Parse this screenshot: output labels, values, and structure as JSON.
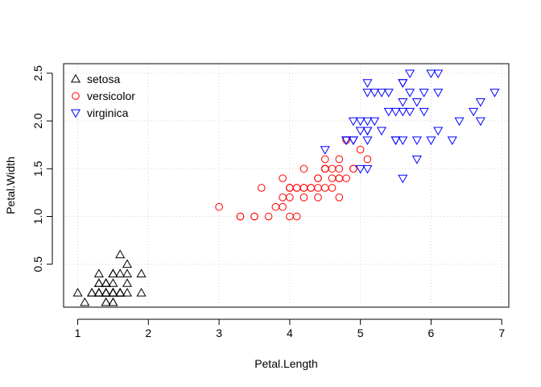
{
  "chart_data": {
    "type": "scatter",
    "xlabel": "Petal.Length",
    "ylabel": "Petal.Width",
    "xlim": [
      0.8,
      7.1
    ],
    "ylim": [
      0.05,
      2.6
    ],
    "xticks": [
      1,
      2,
      3,
      4,
      5,
      6,
      7
    ],
    "yticks": [
      0.5,
      1.0,
      1.5,
      2.0,
      2.5
    ],
    "xtick_labels": [
      "1",
      "2",
      "3",
      "4",
      "5",
      "6",
      "7"
    ],
    "ytick_labels": [
      "0.5",
      "1.0",
      "1.5",
      "2.0",
      "2.5"
    ],
    "grid": true,
    "legend": "top-left",
    "series": [
      {
        "name": "setosa",
        "marker": "triangle-up",
        "color": "#000000",
        "points": [
          [
            1.4,
            0.2
          ],
          [
            1.4,
            0.2
          ],
          [
            1.3,
            0.2
          ],
          [
            1.5,
            0.2
          ],
          [
            1.4,
            0.2
          ],
          [
            1.7,
            0.4
          ],
          [
            1.4,
            0.3
          ],
          [
            1.5,
            0.2
          ],
          [
            1.4,
            0.2
          ],
          [
            1.5,
            0.1
          ],
          [
            1.5,
            0.2
          ],
          [
            1.6,
            0.2
          ],
          [
            1.4,
            0.1
          ],
          [
            1.1,
            0.1
          ],
          [
            1.2,
            0.2
          ],
          [
            1.5,
            0.4
          ],
          [
            1.3,
            0.4
          ],
          [
            1.4,
            0.3
          ],
          [
            1.7,
            0.3
          ],
          [
            1.5,
            0.3
          ],
          [
            1.7,
            0.2
          ],
          [
            1.5,
            0.4
          ],
          [
            1.0,
            0.2
          ],
          [
            1.7,
            0.5
          ],
          [
            1.9,
            0.2
          ],
          [
            1.6,
            0.2
          ],
          [
            1.6,
            0.4
          ],
          [
            1.5,
            0.2
          ],
          [
            1.4,
            0.2
          ],
          [
            1.6,
            0.2
          ],
          [
            1.6,
            0.2
          ],
          [
            1.5,
            0.4
          ],
          [
            1.5,
            0.1
          ],
          [
            1.4,
            0.2
          ],
          [
            1.5,
            0.2
          ],
          [
            1.2,
            0.2
          ],
          [
            1.3,
            0.2
          ],
          [
            1.4,
            0.1
          ],
          [
            1.3,
            0.2
          ],
          [
            1.5,
            0.2
          ],
          [
            1.3,
            0.3
          ],
          [
            1.3,
            0.3
          ],
          [
            1.3,
            0.2
          ],
          [
            1.6,
            0.6
          ],
          [
            1.9,
            0.4
          ],
          [
            1.4,
            0.3
          ],
          [
            1.6,
            0.2
          ],
          [
            1.4,
            0.2
          ],
          [
            1.5,
            0.2
          ],
          [
            1.4,
            0.2
          ]
        ]
      },
      {
        "name": "versicolor",
        "marker": "circle",
        "color": "#ff0000",
        "points": [
          [
            4.7,
            1.4
          ],
          [
            4.5,
            1.5
          ],
          [
            4.9,
            1.5
          ],
          [
            4.0,
            1.3
          ],
          [
            4.6,
            1.5
          ],
          [
            4.5,
            1.3
          ],
          [
            4.7,
            1.6
          ],
          [
            3.3,
            1.0
          ],
          [
            4.6,
            1.3
          ],
          [
            3.9,
            1.4
          ],
          [
            3.5,
            1.0
          ],
          [
            4.2,
            1.5
          ],
          [
            4.0,
            1.0
          ],
          [
            4.7,
            1.4
          ],
          [
            3.6,
            1.3
          ],
          [
            4.4,
            1.4
          ],
          [
            4.5,
            1.5
          ],
          [
            4.1,
            1.0
          ],
          [
            4.5,
            1.5
          ],
          [
            3.9,
            1.1
          ],
          [
            4.8,
            1.8
          ],
          [
            4.0,
            1.3
          ],
          [
            4.9,
            1.5
          ],
          [
            4.7,
            1.2
          ],
          [
            4.3,
            1.3
          ],
          [
            4.4,
            1.4
          ],
          [
            4.8,
            1.4
          ],
          [
            5.0,
            1.7
          ],
          [
            4.5,
            1.5
          ],
          [
            3.5,
            1.0
          ],
          [
            3.8,
            1.1
          ],
          [
            3.7,
            1.0
          ],
          [
            3.9,
            1.2
          ],
          [
            5.1,
            1.6
          ],
          [
            4.5,
            1.5
          ],
          [
            4.5,
            1.6
          ],
          [
            4.7,
            1.5
          ],
          [
            4.4,
            1.3
          ],
          [
            4.1,
            1.3
          ],
          [
            4.0,
            1.3
          ],
          [
            4.4,
            1.2
          ],
          [
            4.6,
            1.4
          ],
          [
            4.0,
            1.2
          ],
          [
            3.3,
            1.0
          ],
          [
            4.2,
            1.3
          ],
          [
            4.2,
            1.2
          ],
          [
            4.2,
            1.3
          ],
          [
            4.3,
            1.3
          ],
          [
            3.0,
            1.1
          ],
          [
            4.1,
            1.3
          ]
        ]
      },
      {
        "name": "virginica",
        "marker": "triangle-down",
        "color": "#0000ff",
        "points": [
          [
            6.0,
            2.5
          ],
          [
            5.1,
            1.9
          ],
          [
            5.9,
            2.1
          ],
          [
            5.6,
            1.8
          ],
          [
            5.8,
            2.2
          ],
          [
            6.6,
            2.1
          ],
          [
            4.5,
            1.7
          ],
          [
            6.3,
            1.8
          ],
          [
            5.8,
            1.8
          ],
          [
            6.1,
            2.5
          ],
          [
            5.1,
            2.0
          ],
          [
            5.3,
            1.9
          ],
          [
            5.5,
            2.1
          ],
          [
            5.0,
            2.0
          ],
          [
            5.1,
            2.4
          ],
          [
            5.3,
            2.3
          ],
          [
            5.5,
            1.8
          ],
          [
            6.7,
            2.2
          ],
          [
            6.9,
            2.3
          ],
          [
            5.0,
            1.5
          ],
          [
            5.7,
            2.3
          ],
          [
            4.9,
            2.0
          ],
          [
            6.7,
            2.0
          ],
          [
            4.9,
            1.8
          ],
          [
            5.7,
            2.1
          ],
          [
            6.0,
            1.8
          ],
          [
            4.8,
            1.8
          ],
          [
            4.9,
            1.8
          ],
          [
            5.6,
            2.1
          ],
          [
            5.8,
            1.6
          ],
          [
            6.1,
            1.9
          ],
          [
            6.4,
            2.0
          ],
          [
            5.6,
            2.2
          ],
          [
            5.1,
            1.5
          ],
          [
            5.6,
            1.4
          ],
          [
            6.1,
            2.3
          ],
          [
            5.6,
            2.4
          ],
          [
            5.5,
            1.8
          ],
          [
            4.8,
            1.8
          ],
          [
            5.4,
            2.1
          ],
          [
            5.6,
            2.4
          ],
          [
            5.1,
            2.3
          ],
          [
            5.1,
            1.9
          ],
          [
            5.9,
            2.3
          ],
          [
            5.7,
            2.5
          ],
          [
            5.2,
            2.3
          ],
          [
            5.0,
            1.9
          ],
          [
            5.2,
            2.0
          ],
          [
            5.4,
            2.3
          ],
          [
            5.1,
            1.8
          ]
        ]
      }
    ]
  }
}
